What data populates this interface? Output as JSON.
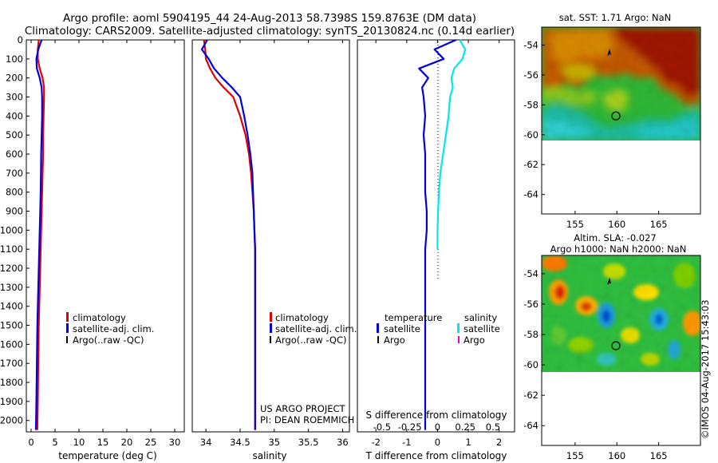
{
  "header": {
    "line1": "Argo profile: aoml 5904195_44 24-Aug-2013 58.7398S 159.8763E (DM data)",
    "line2": "Climatology: CARS2009. Satellite-adjusted climatology: synTS_20130824.nc (0.14d earlier)"
  },
  "credit": "©IMOS 04-Aug-2017 15:43:03",
  "project_note": {
    "line1": "US ARGO PROJECT",
    "line2": "PI: DEAN ROEMMICH"
  },
  "colors": {
    "climatology": "#e00000",
    "satellite": "#0000e0",
    "argo": "#000000",
    "salinity_satellite": "#00e8ee",
    "salinity_argo": "#e000e0"
  },
  "chart_data": [
    {
      "type": "line",
      "id": "temperature",
      "xlabel": "temperature (deg C)",
      "ylabel": "",
      "xlim": [
        -1,
        32
      ],
      "ylim": [
        2060,
        0
      ],
      "xticks": [
        0,
        5,
        10,
        15,
        20,
        25,
        30
      ],
      "xtick_labels": [
        "0",
        "5",
        "10",
        "15",
        "20",
        "25",
        "30"
      ],
      "yticks": [
        0,
        100,
        200,
        300,
        400,
        500,
        600,
        700,
        800,
        900,
        1000,
        1100,
        1200,
        1300,
        1400,
        1500,
        1600,
        1700,
        1800,
        1900,
        2000
      ],
      "ytick_labels": [
        "0",
        "100",
        "200",
        "300",
        "400",
        "500",
        "600",
        "700",
        "800",
        "900",
        "1000",
        "1100",
        "1200",
        "1300",
        "1400",
        "1500",
        "1600",
        "1700",
        "1800",
        "1900",
        "2000"
      ],
      "legend": [
        "climatology",
        "satellite-adj. clim.",
        "Argo(..raw -QC)"
      ],
      "legend_position": "lower-right",
      "series": [
        {
          "name": "climatology",
          "color": "#e00000",
          "x": [
            1.6,
            1.4,
            1.4,
            1.8,
            2.4,
            2.7,
            2.7,
            2.6,
            2.5,
            2.5,
            2.3,
            2.2,
            2.1,
            2.0,
            1.9,
            1.8,
            1.7,
            1.6,
            1.5,
            1.4,
            1.3
          ],
          "y": [
            0,
            50,
            100,
            150,
            200,
            250,
            300,
            400,
            500,
            600,
            800,
            900,
            1000,
            1100,
            1200,
            1300,
            1400,
            1500,
            1700,
            1900,
            2050
          ]
        },
        {
          "name": "satellite-adj. clim.",
          "color": "#0000e0",
          "x": [
            2.2,
            1.5,
            1.1,
            1.2,
            1.8,
            2.2,
            2.3,
            2.3,
            2.2,
            2.1,
            2.0,
            1.9,
            1.8,
            1.7,
            1.6,
            1.5,
            1.4,
            1.3,
            1.2,
            1.1,
            1.0
          ],
          "y": [
            0,
            50,
            100,
            150,
            200,
            250,
            300,
            400,
            500,
            600,
            800,
            900,
            1000,
            1100,
            1200,
            1300,
            1400,
            1500,
            1700,
            1900,
            2050
          ]
        }
      ]
    },
    {
      "type": "line",
      "id": "salinity",
      "xlabel": "salinity",
      "ylabel": "",
      "xlim": [
        33.8,
        36.1
      ],
      "ylim": [
        2060,
        0
      ],
      "xticks": [
        34,
        34.5,
        35,
        35.5,
        36
      ],
      "xtick_labels": [
        "34",
        "34.5",
        "35",
        "35.5",
        "36"
      ],
      "legend": [
        "climatology",
        "satellite-adj. clim.",
        "Argo(..raw -QC)"
      ],
      "legend_position": "lower-right",
      "series": [
        {
          "name": "climatology",
          "color": "#e00000",
          "x": [
            33.97,
            33.99,
            34.0,
            34.06,
            34.14,
            34.26,
            34.4,
            34.5,
            34.58,
            34.63,
            34.66,
            34.68,
            34.7,
            34.71,
            34.72,
            34.72,
            34.72,
            34.72,
            34.72,
            34.72,
            34.72,
            34.72
          ],
          "y": [
            0,
            50,
            100,
            150,
            200,
            250,
            300,
            400,
            500,
            600,
            700,
            800,
            900,
            1000,
            1100,
            1200,
            1300,
            1400,
            1500,
            1700,
            1900,
            2050
          ]
        },
        {
          "name": "satellite-adj. clim.",
          "color": "#0000e0",
          "x": [
            34.02,
            33.94,
            34.04,
            34.12,
            34.24,
            34.38,
            34.5,
            34.56,
            34.61,
            34.65,
            34.68,
            34.69,
            34.7,
            34.71,
            34.72,
            34.72,
            34.72,
            34.72,
            34.72,
            34.72,
            34.72,
            34.72
          ],
          "y": [
            0,
            50,
            100,
            150,
            200,
            250,
            300,
            400,
            500,
            600,
            700,
            800,
            900,
            1000,
            1100,
            1200,
            1300,
            1400,
            1500,
            1700,
            1900,
            2050
          ]
        }
      ]
    },
    {
      "type": "line",
      "id": "difference",
      "xlabel": "T difference from climatology",
      "xlabel_top": "S difference from climatology",
      "xlim": [
        -2.6,
        2.5
      ],
      "xticks": [
        -2,
        -1,
        0,
        1,
        2
      ],
      "xtick_labels": [
        "-2",
        "-1",
        "0",
        "1",
        "2"
      ],
      "sticks": [
        -0.5,
        -0.25,
        0,
        0.25,
        0.5
      ],
      "stick_labels": [
        "-0.5",
        "-0.25",
        "0",
        "0.25",
        "0.5"
      ],
      "legend_left_title": "temperature",
      "legend_right_title": "salinity",
      "legend_left": [
        "satellite",
        "Argo"
      ],
      "legend_right": [
        "satellite",
        "Argo"
      ],
      "series": [
        {
          "name": "satellite",
          "group": "temperature",
          "color": "#0000e0",
          "x": [
            0.6,
            -0.1,
            0.2,
            -0.6,
            -0.3,
            -0.5,
            -0.45,
            -0.4,
            -0.45,
            -0.4,
            -0.4,
            -0.35,
            -0.35,
            -0.4,
            -0.4,
            -0.4,
            -0.4,
            -0.4,
            -0.4,
            -0.4,
            -0.4
          ],
          "y": [
            0,
            50,
            100,
            150,
            200,
            250,
            300,
            400,
            500,
            600,
            800,
            900,
            1000,
            1100,
            1200,
            1300,
            1400,
            1500,
            1700,
            1900,
            2050
          ]
        },
        {
          "name": "satellite",
          "group": "salinity",
          "color": "#00e8ee",
          "x": [
            0.8,
            1.0,
            0.9,
            0.6,
            0.5,
            0.55,
            0.45,
            0.4,
            0.3,
            0.2,
            0.1,
            0.05,
            0.02,
            0.0,
            0.0
          ],
          "y": [
            0,
            50,
            100,
            150,
            200,
            250,
            300,
            400,
            500,
            600,
            700,
            800,
            900,
            1000,
            1100
          ]
        }
      ]
    },
    {
      "type": "heatmap",
      "id": "sst-map",
      "title": "sat. SST: 1.71  Argo: NaN",
      "xlim": [
        151,
        170
      ],
      "ylim": [
        -65.3,
        -52.8
      ],
      "xticks": [
        155,
        160,
        165
      ],
      "yticks": [
        -54,
        -56,
        -58,
        -60,
        -62,
        -64
      ],
      "ytick_labels": [
        "-54",
        "-56",
        "-58",
        "-60",
        "-62",
        "-64"
      ],
      "data_extent_lat": [
        -60,
        -52.8
      ],
      "marker": {
        "lon": 159.88,
        "lat": -58.74
      }
    },
    {
      "type": "heatmap",
      "id": "sla-map",
      "title_line1": "Altim. SLA: -0.027",
      "title_line2": "Argo h1000: NaN  h2000: NaN",
      "xlim": [
        151,
        170
      ],
      "ylim": [
        -65.3,
        -52.8
      ],
      "xticks": [
        155,
        160,
        165
      ],
      "yticks": [
        -54,
        -56,
        -58,
        -60,
        -62,
        -64
      ],
      "ytick_labels": [
        "-54",
        "-56",
        "-58",
        "-60",
        "-62",
        "-64"
      ],
      "data_extent_lat": [
        -60,
        -52.8
      ],
      "marker": {
        "lon": 159.88,
        "lat": -58.74
      }
    }
  ]
}
